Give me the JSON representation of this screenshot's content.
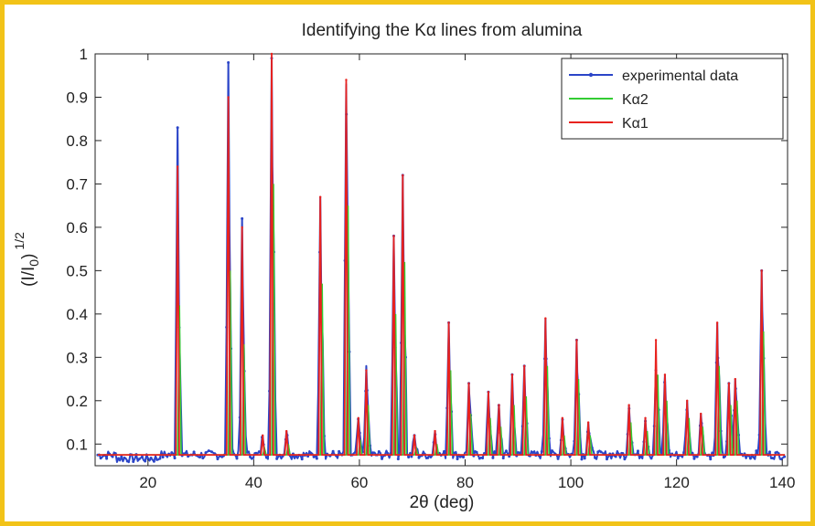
{
  "colors": {
    "frame": "#f2c318",
    "experimental": "#2b45c8",
    "ka2": "#33cc33",
    "ka1": "#e8221e"
  },
  "chart_data": {
    "type": "line",
    "title": "Identifying the Kα lines from alumina",
    "xlabel": "2θ (deg)",
    "ylabel_main": "(I/I",
    "ylabel_sub": "0",
    "ylabel_close": ")",
    "ylabel_sup": "1/2",
    "xlim": [
      10,
      141
    ],
    "ylim": [
      0.05,
      1.0
    ],
    "xticks": [
      20,
      40,
      60,
      80,
      100,
      120,
      140
    ],
    "xtick_labels": [
      "20",
      "40",
      "60",
      "80",
      "100",
      "120",
      "140"
    ],
    "yticks": [
      0.1,
      0.2,
      0.3,
      0.4,
      0.5,
      0.6,
      0.7,
      0.8,
      0.9,
      1.0
    ],
    "ytick_labels": [
      "0.1",
      "0.2",
      "0.3",
      "0.4",
      "0.5",
      "0.6",
      "0.7",
      "0.8",
      "0.9",
      "1"
    ],
    "legend_position": "top-right",
    "background": 0.075,
    "series": [
      {
        "name": "experimental data",
        "color": "#2b45c8",
        "marker": "dot"
      },
      {
        "name": "Kα2",
        "color": "#33cc33"
      },
      {
        "name": "Kα1",
        "color": "#e8221e"
      }
    ],
    "peaks": [
      {
        "x": 25.6,
        "exp": 0.83,
        "ka1": 0.74,
        "ka2": 0.42
      },
      {
        "x": 35.2,
        "exp": 0.98,
        "ka1": 0.9,
        "ka2": 0.5
      },
      {
        "x": 37.8,
        "exp": 0.62,
        "ka1": 0.6,
        "ka2": 0.33
      },
      {
        "x": 41.7,
        "exp": 0.12,
        "ka1": 0.12,
        "ka2": 0.09
      },
      {
        "x": 43.4,
        "exp": 0.99,
        "ka1": 1.0,
        "ka2": 0.7
      },
      {
        "x": 46.2,
        "exp": 0.13,
        "ka1": 0.13,
        "ka2": 0.1
      },
      {
        "x": 52.6,
        "exp": 0.67,
        "ka1": 0.67,
        "ka2": 0.47
      },
      {
        "x": 57.5,
        "exp": 0.93,
        "ka1": 0.94,
        "ka2": 0.65
      },
      {
        "x": 59.8,
        "exp": 0.16,
        "ka1": 0.16,
        "ka2": 0.11
      },
      {
        "x": 61.3,
        "exp": 0.28,
        "ka1": 0.27,
        "ka2": 0.19
      },
      {
        "x": 66.5,
        "exp": 0.58,
        "ka1": 0.58,
        "ka2": 0.4
      },
      {
        "x": 68.2,
        "exp": 0.72,
        "ka1": 0.72,
        "ka2": 0.52
      },
      {
        "x": 70.4,
        "exp": 0.12,
        "ka1": 0.12,
        "ka2": 0.09
      },
      {
        "x": 74.3,
        "exp": 0.13,
        "ka1": 0.13,
        "ka2": 0.1
      },
      {
        "x": 76.9,
        "exp": 0.38,
        "ka1": 0.38,
        "ka2": 0.27
      },
      {
        "x": 80.7,
        "exp": 0.24,
        "ka1": 0.24,
        "ka2": 0.17
      },
      {
        "x": 84.4,
        "exp": 0.22,
        "ka1": 0.22,
        "ka2": 0.16
      },
      {
        "x": 86.4,
        "exp": 0.19,
        "ka1": 0.19,
        "ka2": 0.14
      },
      {
        "x": 88.9,
        "exp": 0.26,
        "ka1": 0.26,
        "ka2": 0.19
      },
      {
        "x": 91.2,
        "exp": 0.28,
        "ka1": 0.28,
        "ka2": 0.21
      },
      {
        "x": 95.2,
        "exp": 0.39,
        "ka1": 0.39,
        "ka2": 0.28
      },
      {
        "x": 98.4,
        "exp": 0.16,
        "ka1": 0.16,
        "ka2": 0.12
      },
      {
        "x": 101.1,
        "exp": 0.34,
        "ka1": 0.34,
        "ka2": 0.25
      },
      {
        "x": 103.3,
        "exp": 0.15,
        "ka1": 0.15,
        "ka2": 0.12
      },
      {
        "x": 111.0,
        "exp": 0.19,
        "ka1": 0.19,
        "ka2": 0.15
      },
      {
        "x": 114.1,
        "exp": 0.16,
        "ka1": 0.16,
        "ka2": 0.13
      },
      {
        "x": 116.1,
        "exp": 0.27,
        "ka1": 0.34,
        "ka2": 0.26
      },
      {
        "x": 117.8,
        "exp": 0.26,
        "ka1": 0.26,
        "ka2": 0.2
      },
      {
        "x": 122.0,
        "exp": 0.2,
        "ka1": 0.2,
        "ka2": 0.16
      },
      {
        "x": 124.6,
        "exp": 0.17,
        "ka1": 0.17,
        "ka2": 0.14
      },
      {
        "x": 127.7,
        "exp": 0.38,
        "ka1": 0.38,
        "ka2": 0.28
      },
      {
        "x": 129.9,
        "exp": 0.24,
        "ka1": 0.24,
        "ka2": 0.19
      },
      {
        "x": 131.1,
        "exp": 0.25,
        "ka1": 0.25,
        "ka2": 0.2
      },
      {
        "x": 136.1,
        "exp": 0.5,
        "ka1": 0.5,
        "ka2": 0.36
      }
    ]
  }
}
